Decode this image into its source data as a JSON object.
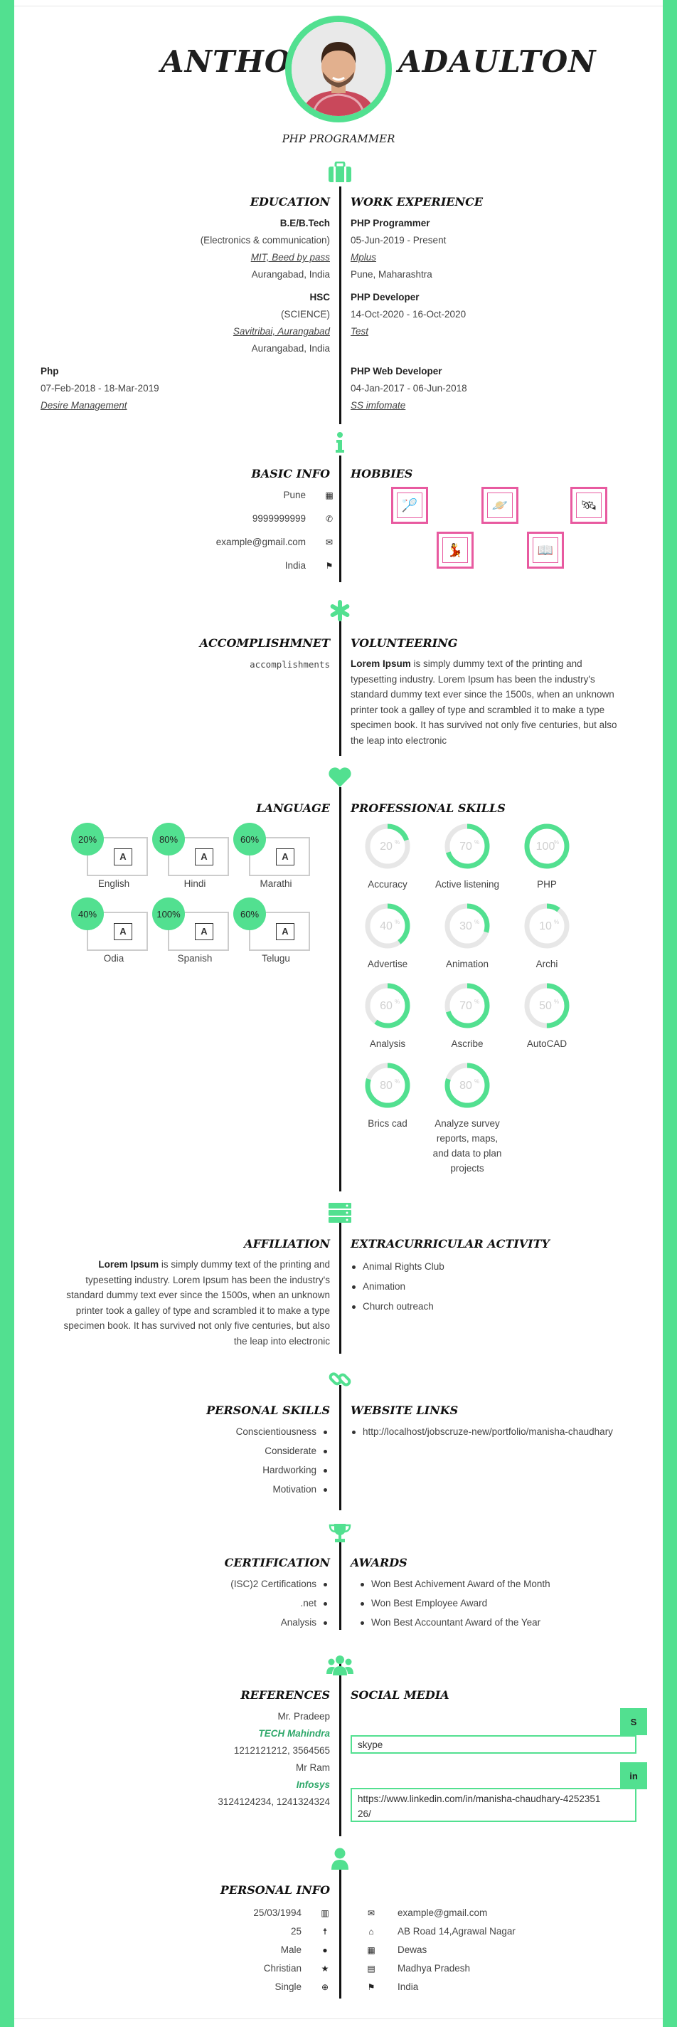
{
  "header": {
    "first_name": "ANTHONY",
    "last_name": "ADAULTON",
    "role": "PHP PROGRAMMER"
  },
  "education": {
    "title": "EDUCATION",
    "items": [
      {
        "degree": "B.E/B.Tech",
        "field": "(Electronics & communication)",
        "institute": "MIT, Beed by pass",
        "location": "Aurangabad, India"
      },
      {
        "degree": "HSC",
        "field": "(SCIENCE)",
        "institute": "Savitribai, Aurangabad",
        "location": "Aurangabad, India"
      }
    ],
    "extra": {
      "degree": "Php",
      "dates": "07-Feb-2018 - 18-Mar-2019",
      "institute": "Desire Management"
    }
  },
  "experience": {
    "title": "WORK EXPERIENCE",
    "items": [
      {
        "position": "PHP Programmer",
        "dates": "05-Jun-2019 - Present",
        "company": "Mplus",
        "location": "Pune, Maharashtra"
      },
      {
        "position": "PHP Developer",
        "dates": "14-Oct-2020 - 16-Oct-2020",
        "company": "Test"
      },
      {
        "position": "PHP Web Developer",
        "dates": "04-Jan-2017 - 06-Jun-2018",
        "company": "SS imfomate"
      }
    ]
  },
  "basic_info": {
    "title": "BASIC INFO",
    "city": "Pune",
    "phone": "9999999999",
    "email": "example@gmail.com",
    "country": "India"
  },
  "hobbies": {
    "title": "HOBBIES"
  },
  "accomplishment": {
    "title": "ACCOMPLISHMNET",
    "text": "accomplishments"
  },
  "volunteering": {
    "title": "VOLUNTEERING",
    "bold": "Lorem Ipsum",
    "lines": [
      " is simply dummy text of the printing and",
      "typesetting industry. Lorem Ipsum has been the industry's",
      "standard dummy text ever since the 1500s, when an unknown",
      "printer took a galley of type and scrambled it to make a type",
      "specimen book. It has survived not only five centuries, but also",
      "the leap into electronic"
    ]
  },
  "language": {
    "title": "LANGUAGE",
    "items": [
      {
        "name": "English",
        "percent": "20%"
      },
      {
        "name": "Hindi",
        "percent": "80%"
      },
      {
        "name": "Marathi",
        "percent": "60%"
      },
      {
        "name": "Odia",
        "percent": "40%"
      },
      {
        "name": "Spanish",
        "percent": "100%"
      },
      {
        "name": "Telugu",
        "percent": "60%"
      }
    ]
  },
  "skills": {
    "title": "PROFESSIONAL SKILLS",
    "items": [
      {
        "name": "Accuracy",
        "value": 20
      },
      {
        "name": "Active listening",
        "value": 70
      },
      {
        "name": "PHP",
        "value": 100
      },
      {
        "name": "Advertise",
        "value": 40
      },
      {
        "name": "Animation",
        "value": 30
      },
      {
        "name": "Archi",
        "value": 10
      },
      {
        "name": "Analysis",
        "value": 60
      },
      {
        "name": "Ascribe",
        "value": 70
      },
      {
        "name": "AutoCAD",
        "value": 50
      },
      {
        "name": "Brics cad",
        "value": 80
      },
      {
        "name": "Analyze survey reports, maps, and data to plan projects",
        "value": 80
      }
    ]
  },
  "affiliation": {
    "title": "AFFILIATION",
    "bold": "Lorem Ipsum",
    "lines": [
      " is simply dummy text of the printing and",
      "typesetting industry. Lorem Ipsum has been the industry's",
      "standard dummy text ever since the 1500s, when an unknown",
      "printer took a galley of type and scrambled it to make a type",
      "specimen book. It has survived not only five centuries, but also",
      "the leap into electronic"
    ]
  },
  "extracurricular": {
    "title": "EXTRACURRICULAR ACTIVITY",
    "items": [
      "Animal Rights Club",
      "Animation",
      "Church outreach"
    ]
  },
  "personal_skills": {
    "title": "PERSONAL SKILLS",
    "items": [
      "Conscientiousness",
      "Considerate",
      "Hardworking",
      "Motivation"
    ]
  },
  "website_links": {
    "title": "WEBSITE LINKS",
    "items": [
      "http://localhost/jobscruze-new/portfolio/manisha-chaudhary"
    ]
  },
  "certification": {
    "title": "CERTIFICATION",
    "items": [
      "(ISC)2 Certifications",
      ".net",
      "Analysis"
    ]
  },
  "awards": {
    "title": "AWARDS",
    "items": [
      "Won Best Achivement Award of the Month",
      "Won Best Employee Award",
      "Won Best Accountant Award of the Year"
    ]
  },
  "references": {
    "title": "REFERENCES",
    "items": [
      {
        "name": "Mr. Pradeep",
        "company": "TECH Mahindra",
        "phone": "1212121212, 3564565"
      },
      {
        "name": "Mr Ram",
        "company": "Infosys",
        "phone": "3124124234, 1241324324"
      }
    ]
  },
  "social": {
    "title": "SOCIAL MEDIA",
    "skype": "skype",
    "skype_btn": "S",
    "linkedin_1": "https://www.linkedin.com/in/manisha-chaudhary-4252351",
    "linkedin_2": "26/",
    "linkedin_btn": "in"
  },
  "personal_info": {
    "title": "PERSONAL INFO",
    "left": [
      "25/03/1994",
      "25",
      "Male",
      "Christian",
      "Single"
    ],
    "right": [
      "example@gmail.com",
      "AB Road 14,Agrawal Nagar",
      "Dewas",
      "Madhya Pradesh",
      "India"
    ]
  },
  "colors": {
    "accent": "#52e090",
    "hobby": "#e85aa0"
  }
}
